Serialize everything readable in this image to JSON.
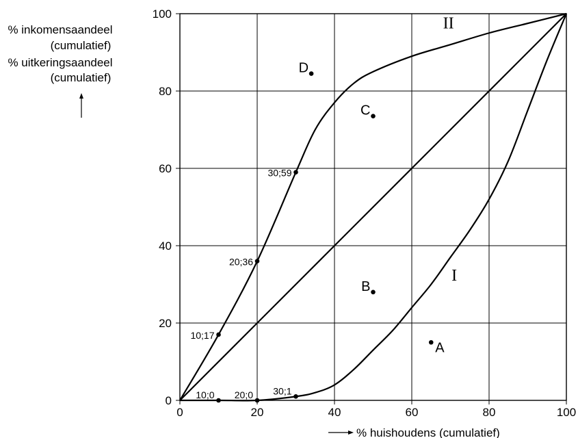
{
  "chart_data": {
    "type": "line",
    "xlabel": "% huishoudens (cumulatief)",
    "ylabel_lines": [
      "% inkomensaandeel",
      "(cumulatief)",
      "% uitkeringsaandeel",
      "(cumulatief)"
    ],
    "xlim": [
      0,
      100
    ],
    "ylim": [
      0,
      100
    ],
    "xticks": [
      "0",
      "20",
      "40",
      "60",
      "80",
      "100"
    ],
    "yticks": [
      "0",
      "20",
      "40",
      "60",
      "80",
      "100"
    ],
    "grid": true,
    "series": [
      {
        "name": "II",
        "x": [
          0,
          10,
          20,
          30,
          35,
          40,
          45,
          50,
          60,
          70,
          80,
          90,
          100
        ],
        "y": [
          0,
          17,
          36,
          59,
          70,
          77,
          82,
          85,
          89,
          92,
          95,
          97.5,
          100
        ]
      },
      {
        "name": "",
        "x": [
          0,
          100
        ],
        "y": [
          0,
          100
        ]
      },
      {
        "name": "I",
        "x": [
          0,
          10,
          20,
          30,
          35,
          40,
          45,
          50,
          55,
          60,
          65,
          70,
          75,
          80,
          85,
          90,
          95,
          100
        ],
        "y": [
          0,
          0,
          0,
          1,
          2,
          4,
          8,
          13,
          18,
          24,
          30,
          37,
          44,
          52,
          62,
          75,
          88,
          100
        ]
      }
    ],
    "marked_points": [
      {
        "x": 10,
        "y": 17,
        "label": "10;17"
      },
      {
        "x": 20,
        "y": 36,
        "label": "20;36"
      },
      {
        "x": 30,
        "y": 59,
        "label": "30;59"
      },
      {
        "x": 10,
        "y": 0,
        "label": "10;0"
      },
      {
        "x": 20,
        "y": 0,
        "label": "20;0"
      },
      {
        "x": 30,
        "y": 1,
        "label": "30;1"
      }
    ],
    "annotations": [
      {
        "text": "A",
        "x": 65,
        "y": 15
      },
      {
        "text": "B",
        "x": 50,
        "y": 28
      },
      {
        "text": "C",
        "x": 50,
        "y": 73.5
      },
      {
        "text": "D",
        "x": 34,
        "y": 84.5
      }
    ],
    "curve_labels": [
      "I",
      "II"
    ],
    "y_arrow": "↑",
    "x_arrow": "⟶"
  }
}
